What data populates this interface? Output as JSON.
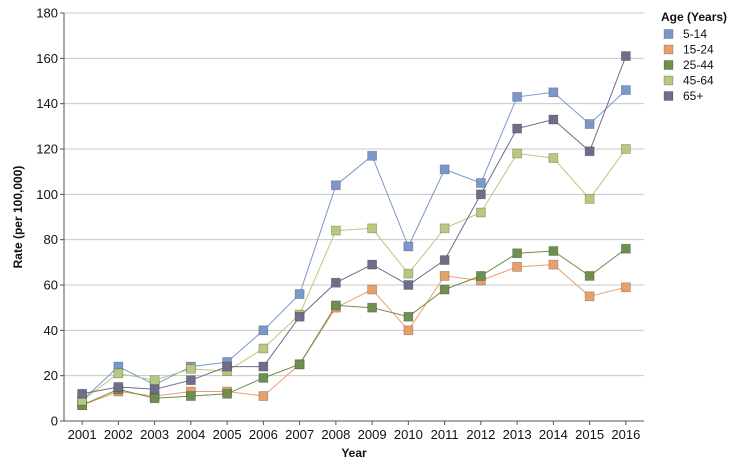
{
  "chart_data": {
    "type": "line",
    "xlabel": "Year",
    "ylabel": "Rate (per 100,000)",
    "ylim": [
      0,
      180
    ],
    "yticks": [
      0,
      20,
      40,
      60,
      80,
      100,
      120,
      140,
      160,
      180
    ],
    "grid": "horizontal",
    "legend_title": "Age (Years)",
    "legend_position": "top-right",
    "categories": [
      "2001",
      "2002",
      "2003",
      "2004",
      "2005",
      "2006",
      "2007",
      "2008",
      "2009",
      "2010",
      "2011",
      "2012",
      "2013",
      "2014",
      "2015",
      "2016"
    ],
    "series": [
      {
        "name": "5-14",
        "color": "#7b97cc",
        "values": [
          9,
          24,
          16,
          24,
          26,
          40,
          56,
          104,
          117,
          77,
          111,
          105,
          143,
          145,
          131,
          146
        ]
      },
      {
        "name": "15-24",
        "color": "#e8a06a",
        "values": [
          7,
          13,
          11,
          13,
          13,
          11,
          25,
          50,
          58,
          40,
          64,
          62,
          68,
          69,
          55,
          59
        ]
      },
      {
        "name": "25-44",
        "color": "#6f8f4f",
        "values": [
          7,
          14,
          10,
          11,
          12,
          19,
          25,
          51,
          50,
          46,
          58,
          64,
          74,
          75,
          64,
          76
        ]
      },
      {
        "name": "45-64",
        "color": "#b6c97e",
        "values": [
          9,
          21,
          18,
          23,
          22,
          32,
          47,
          84,
          85,
          65,
          85,
          92,
          118,
          116,
          98,
          120
        ]
      },
      {
        "name": "65+",
        "color": "#6e6e8a",
        "values": [
          12,
          15,
          14,
          18,
          24,
          24,
          46,
          61,
          69,
          60,
          71,
          100,
          129,
          133,
          119,
          161
        ]
      }
    ]
  }
}
